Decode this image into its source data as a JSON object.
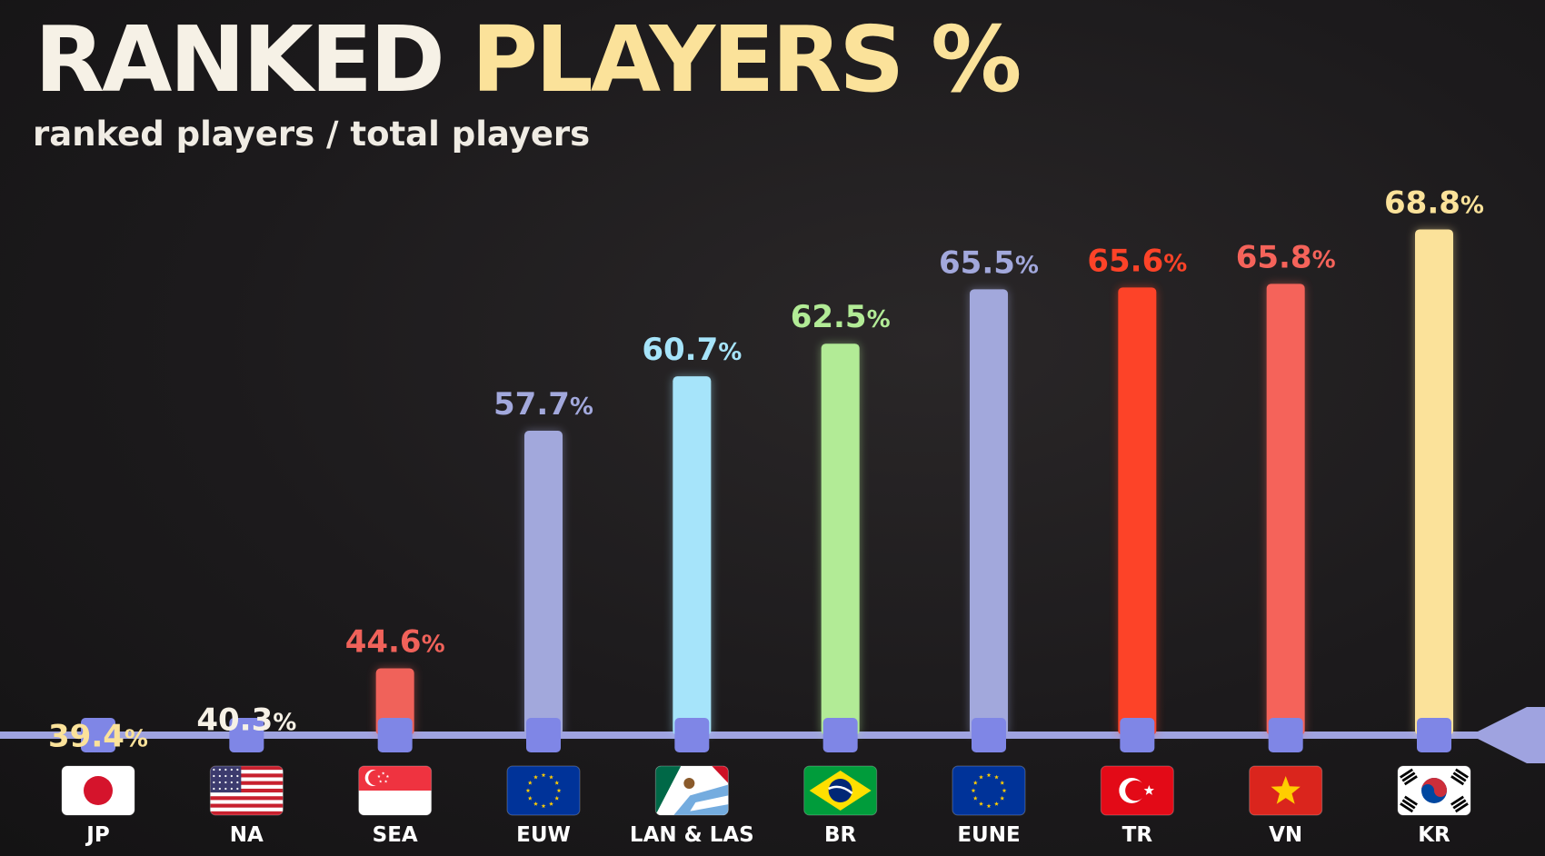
{
  "header": {
    "title_part1": "RANKED",
    "title_part2": "PLAYERS %",
    "subtitle": "ranked players / total players"
  },
  "colors": {
    "background": "#1c1a1c",
    "axis": "#9fa3e0",
    "marker": "#7f86e6",
    "title_highlight": "#fbe29a"
  },
  "chart_data": {
    "type": "bar",
    "title": "RANKED PLAYERS %",
    "subtitle": "ranked players / total players",
    "categories": [
      "JP",
      "NA",
      "SEA",
      "EUW",
      "LAN & LAS",
      "BR",
      "EUNE",
      "TR",
      "VN",
      "KR"
    ],
    "values": [
      39.4,
      40.3,
      44.6,
      57.7,
      60.7,
      62.5,
      65.5,
      65.6,
      65.8,
      68.8
    ],
    "unit": "%",
    "bar_colors": [
      "#fbe29a",
      "#f6f1e6",
      "#f0625a",
      "#a2a8dc",
      "#a6e4fa",
      "#b2eb96",
      "#a2a8dc",
      "#fd4328",
      "#f5635a",
      "#fbe29a"
    ],
    "flag_icons": [
      "japan-flag-icon",
      "usa-flag-icon",
      "singapore-flag-icon",
      "eu-flag-icon",
      "mexico-argentina-flag-icon",
      "brazil-flag-icon",
      "eu-flag-icon",
      "turkey-flag-icon",
      "vietnam-flag-icon",
      "south-korea-flag-icon"
    ],
    "grid": false,
    "legend": "none"
  }
}
